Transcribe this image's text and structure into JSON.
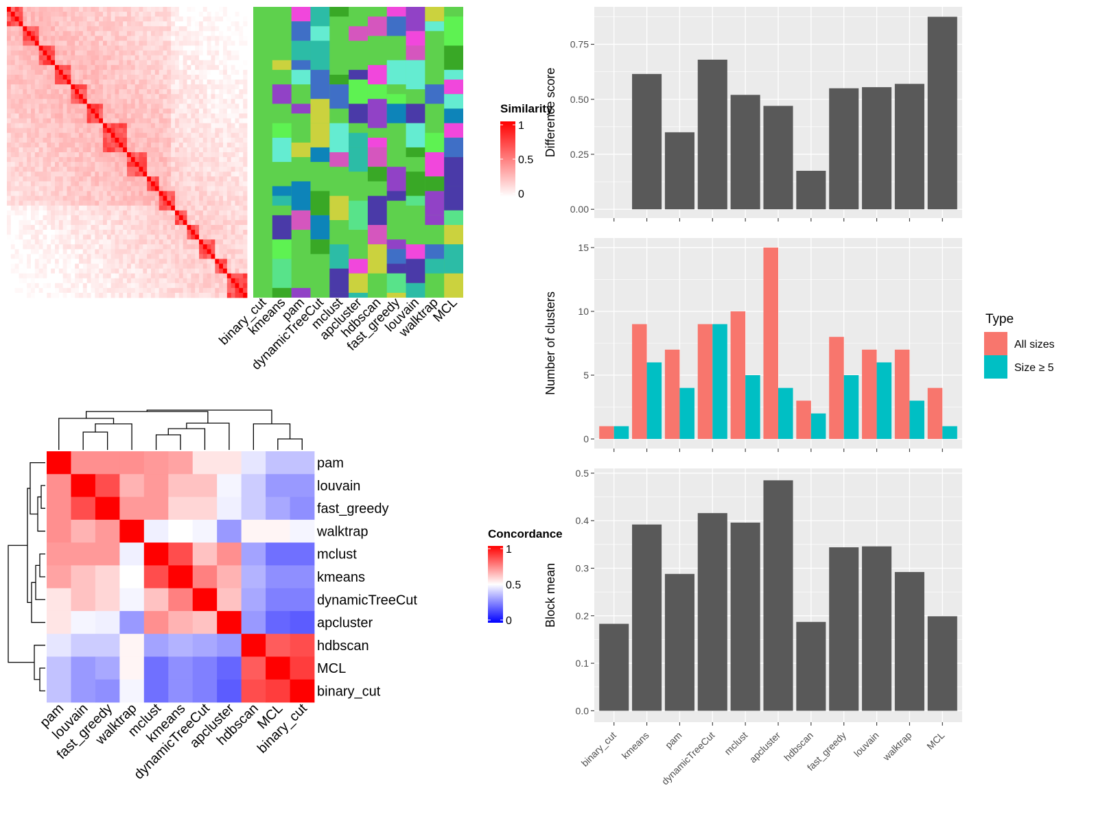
{
  "colors": {
    "similarity_low": "#ffffff",
    "similarity_high": "#ff0000",
    "concordance_low": "#0000ff",
    "concordance_mid": "#ffffff",
    "concordance_high": "#ff0000",
    "panel_bg": "#ebebeb",
    "grid": "#ffffff",
    "bar": "#595959",
    "all_sizes": "#f8766d",
    "size_ge5": "#00bfc4"
  },
  "chart_data": [
    {
      "type": "heatmap",
      "title": "",
      "legend_title": "Similarity",
      "legend_ticks": [
        "1",
        "0.5",
        "0"
      ],
      "scale": [
        0,
        1
      ],
      "n": 60,
      "note_values": "diagonal blocks of high similarity; exact matrix values not legible"
    },
    {
      "type": "heatmap",
      "title": "",
      "columns": [
        "binary_cut",
        "kmeans",
        "pam",
        "dynamicTreeCut",
        "mclust",
        "apcluster",
        "hdbscan",
        "fast_greedy",
        "louvain",
        "walktrap",
        "MCL"
      ],
      "categorical": true,
      "n_rows": 60
    },
    {
      "type": "heatmap",
      "title": "",
      "legend_title": "Concordance",
      "legend_ticks": [
        "1",
        "0.5",
        "0"
      ],
      "rows": [
        "pam",
        "louvain",
        "fast_greedy",
        "walktrap",
        "mclust",
        "kmeans",
        "dynamicTreeCut",
        "apcluster",
        "hdbscan",
        "MCL",
        "binary_cut"
      ],
      "columns": [
        "pam",
        "louvain",
        "fast_greedy",
        "walktrap",
        "mclust",
        "kmeans",
        "dynamicTreeCut",
        "apcluster",
        "hdbscan",
        "MCL",
        "binary_cut"
      ],
      "values": [
        [
          1.0,
          0.72,
          0.72,
          0.72,
          0.7,
          0.68,
          0.55,
          0.55,
          0.45,
          0.38,
          0.38
        ],
        [
          0.72,
          1.0,
          0.85,
          0.65,
          0.7,
          0.62,
          0.62,
          0.48,
          0.4,
          0.3,
          0.3
        ],
        [
          0.72,
          0.85,
          1.0,
          0.7,
          0.7,
          0.58,
          0.58,
          0.47,
          0.4,
          0.33,
          0.28
        ],
        [
          0.72,
          0.65,
          0.7,
          1.0,
          0.47,
          0.5,
          0.48,
          0.3,
          0.52,
          0.52,
          0.48
        ],
        [
          0.7,
          0.7,
          0.7,
          0.47,
          1.0,
          0.85,
          0.62,
          0.72,
          0.32,
          0.22,
          0.22
        ],
        [
          0.68,
          0.62,
          0.58,
          0.5,
          0.85,
          1.0,
          0.75,
          0.65,
          0.35,
          0.28,
          0.28
        ],
        [
          0.55,
          0.62,
          0.58,
          0.48,
          0.62,
          0.75,
          1.0,
          0.62,
          0.33,
          0.25,
          0.25
        ],
        [
          0.55,
          0.48,
          0.47,
          0.3,
          0.72,
          0.65,
          0.62,
          1.0,
          0.3,
          0.2,
          0.18
        ],
        [
          0.45,
          0.4,
          0.4,
          0.52,
          0.32,
          0.35,
          0.33,
          0.3,
          1.0,
          0.82,
          0.85
        ],
        [
          0.38,
          0.3,
          0.33,
          0.52,
          0.22,
          0.28,
          0.25,
          0.2,
          0.82,
          1.0,
          0.88
        ],
        [
          0.38,
          0.3,
          0.28,
          0.48,
          0.22,
          0.28,
          0.25,
          0.18,
          0.85,
          0.88,
          1.0
        ]
      ]
    },
    {
      "type": "bar",
      "title": "",
      "xlabel": "",
      "ylabel": "Difference score",
      "categories": [
        "binary_cut",
        "kmeans",
        "pam",
        "dynamicTreeCut",
        "mclust",
        "apcluster",
        "hdbscan",
        "fast_greedy",
        "louvain",
        "walktrap",
        "MCL"
      ],
      "values": [
        0,
        0.615,
        0.35,
        0.68,
        0.52,
        0.47,
        0.175,
        0.55,
        0.555,
        0.57,
        0.875
      ],
      "ylim": [
        -0.04,
        0.92
      ],
      "yticks": [
        "0.00",
        "0.25",
        "0.50",
        "0.75"
      ],
      "grid": true
    },
    {
      "type": "bar",
      "title": "",
      "xlabel": "",
      "ylabel": "Number of clusters",
      "categories": [
        "binary_cut",
        "kmeans",
        "pam",
        "dynamicTreeCut",
        "mclust",
        "apcluster",
        "hdbscan",
        "fast_greedy",
        "louvain",
        "walktrap",
        "MCL"
      ],
      "series": [
        {
          "name": "All sizes",
          "values": [
            1,
            9,
            7,
            9,
            10,
            15,
            3,
            8,
            7,
            7,
            4
          ]
        },
        {
          "name": "Size ≥ 5",
          "values": [
            1,
            6,
            4,
            9,
            5,
            4,
            2,
            5,
            6,
            3,
            1
          ]
        }
      ],
      "legend_title": "Type",
      "legend_position": "right",
      "ylim": [
        -0.75,
        15.75
      ],
      "yticks": [
        "0",
        "5",
        "10",
        "15"
      ],
      "grid": true
    },
    {
      "type": "bar",
      "title": "",
      "xlabel": "",
      "ylabel": "Block mean",
      "categories": [
        "binary_cut",
        "kmeans",
        "pam",
        "dynamicTreeCut",
        "mclust",
        "apcluster",
        "hdbscan",
        "fast_greedy",
        "louvain",
        "walktrap",
        "MCL"
      ],
      "values": [
        0.183,
        0.392,
        0.288,
        0.416,
        0.396,
        0.485,
        0.187,
        0.344,
        0.346,
        0.292,
        0.199
      ],
      "ylim": [
        -0.024,
        0.51
      ],
      "yticks": [
        "0.0",
        "0.1",
        "0.2",
        "0.3",
        "0.4",
        "0.5"
      ],
      "grid": true
    }
  ]
}
